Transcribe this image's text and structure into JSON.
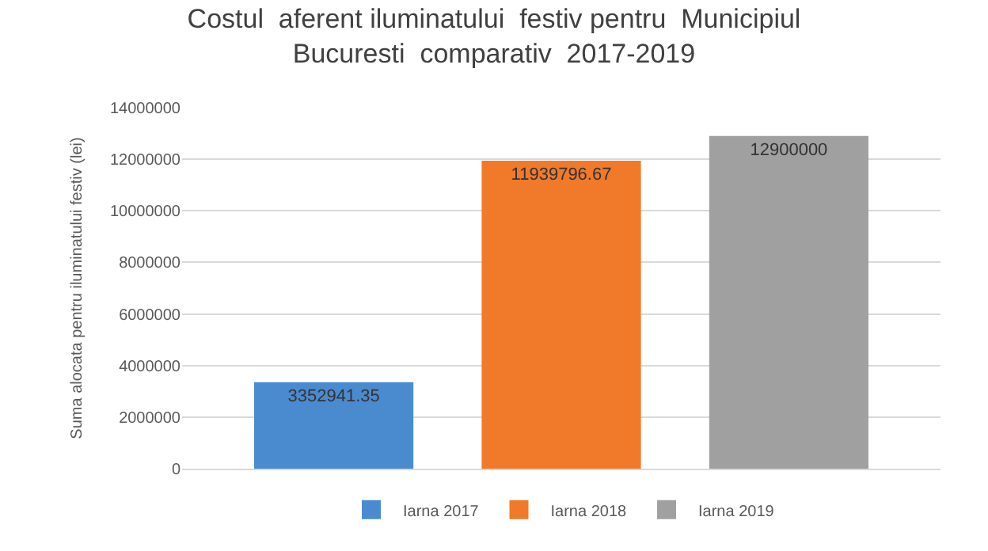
{
  "chart_data": {
    "type": "bar",
    "title": "Costul  aferent iluminatului  festiv pentru  Municipiul\nBucuresti  comparativ  2017-2019",
    "ylabel": "Suma alocata pentru iluminatului festiv (lei)",
    "categories": [
      null
    ],
    "series": [
      {
        "name": "Iarna 2017",
        "color": "#4a8bd0",
        "values": [
          3352941.35
        ]
      },
      {
        "name": "Iarna 2018",
        "color": "#f07a2a",
        "values": [
          11939796.67
        ]
      },
      {
        "name": "Iarna 2019",
        "color": "#a0a0a0",
        "values": [
          12900000
        ]
      }
    ],
    "ylim": [
      0,
      14000000
    ],
    "yticks": [
      0,
      2000000,
      4000000,
      6000000,
      8000000,
      10000000,
      12000000,
      14000000
    ],
    "grid": "y",
    "legend": "bottom",
    "data_labels": true
  }
}
